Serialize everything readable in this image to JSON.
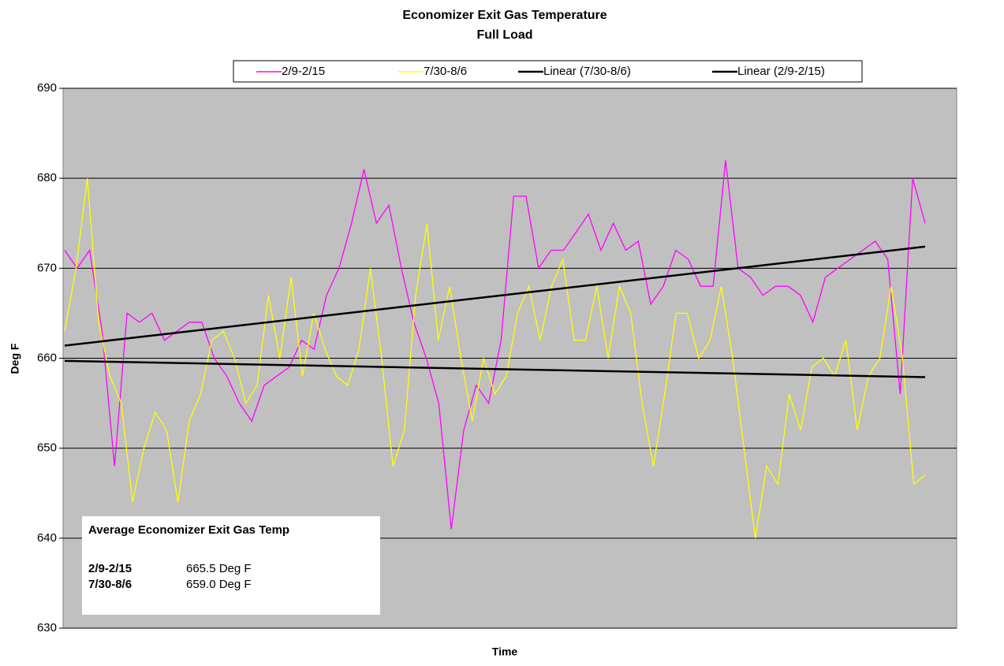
{
  "chart_data": {
    "type": "line",
    "title": "Economizer Exit Gas Temperature",
    "subtitle": "Full Load",
    "y_label": "Deg F",
    "x_label": "Time",
    "ylim": [
      630,
      690
    ],
    "yticks": [
      630,
      640,
      650,
      660,
      670,
      680,
      690
    ],
    "grid": true,
    "plot_background": "#c0c0c0",
    "series": [
      {
        "name": "2/9-2/15",
        "color": "#ff00ff",
        "values": [
          672,
          670,
          672,
          663,
          648,
          665,
          664,
          665,
          662,
          663,
          664,
          664,
          660,
          658,
          655,
          653,
          657,
          658,
          659,
          662,
          661,
          667,
          670,
          675,
          681,
          675,
          677,
          670,
          664,
          660,
          655,
          641,
          652,
          657,
          655,
          662,
          678,
          678,
          670,
          672,
          672,
          674,
          676,
          672,
          675,
          672,
          673,
          666,
          668,
          672,
          671,
          668,
          668,
          682,
          670,
          669,
          667,
          668,
          668,
          667,
          664,
          669,
          670,
          671,
          672,
          673,
          671,
          656,
          680,
          675
        ]
      },
      {
        "name": "7/30-8/6",
        "color": "#ffff00",
        "values": [
          663,
          670,
          680,
          664,
          658,
          655,
          644,
          650,
          654,
          652,
          644,
          653,
          656,
          662,
          663,
          660,
          655,
          657,
          667,
          660,
          669,
          658,
          665,
          661,
          658,
          657,
          661,
          670,
          660,
          648,
          652,
          667,
          675,
          662,
          668,
          660,
          653,
          660,
          656,
          658,
          665,
          668,
          662,
          668,
          671,
          662,
          662,
          668,
          660,
          668,
          665,
          655,
          648,
          656,
          665,
          665,
          660,
          662,
          668,
          660,
          650,
          640,
          648,
          646,
          656,
          652,
          659,
          660,
          658,
          662,
          652,
          658,
          660,
          668,
          660,
          646,
          647
        ]
      },
      {
        "name": "Linear (7/30-8/6)",
        "color": "#000000",
        "values": [
          659.7,
          657.9
        ]
      },
      {
        "name": "Linear (2/9-2/15)",
        "color": "#000000",
        "values": [
          661.4,
          672.4
        ]
      }
    ],
    "annotation": {
      "title": "Average Economizer Exit Gas Temp",
      "rows": [
        [
          "2/9-2/15",
          "665.5 Deg F"
        ],
        [
          "7/30-8/6",
          "659.0 Deg F"
        ]
      ]
    }
  }
}
